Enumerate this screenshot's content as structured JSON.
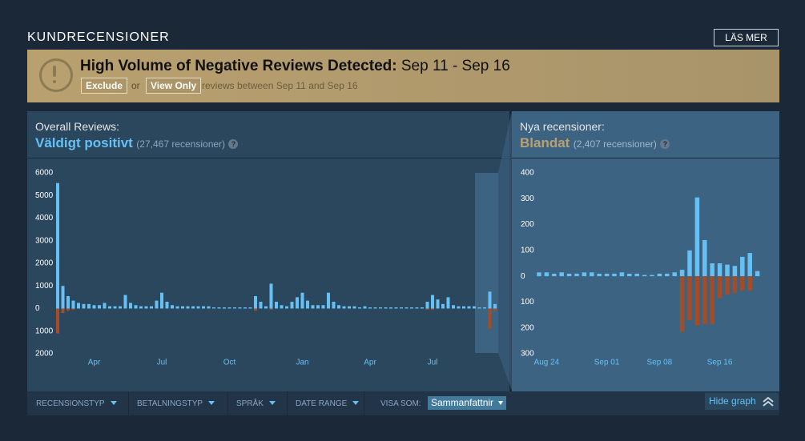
{
  "header": {
    "title": "KUNDRECENSIONER",
    "button": "LÄS MER"
  },
  "alert": {
    "title": "High Volume of Negative Reviews Detected:",
    "dates": "Sep 11 - Sep 16",
    "exclude": "Exclude",
    "or": "or",
    "view_only": "View Only",
    "text": "reviews between Sep 11 and Sep 16"
  },
  "overall": {
    "label": "Overall Reviews:",
    "rating": "Väldigt positivt",
    "count": "(27,467 recensioner)",
    "help": "?"
  },
  "recent": {
    "label": "Nya recensioner:",
    "rating": "Blandat",
    "count": "(2,407 recensioner)",
    "help": "?"
  },
  "chart_data": [
    {
      "type": "bar",
      "categories": [
        null,
        null,
        null,
        null,
        null,
        null,
        null,
        "Apr",
        null,
        null,
        null,
        null,
        null,
        null,
        null,
        null,
        null,
        null,
        null,
        null,
        "Jul",
        null,
        null,
        null,
        null,
        null,
        null,
        null,
        null,
        null,
        null,
        null,
        null,
        "Oct",
        null,
        null,
        null,
        null,
        null,
        null,
        null,
        null,
        null,
        null,
        null,
        null,
        null,
        "Jan",
        null,
        null,
        null,
        null,
        null,
        null,
        null,
        null,
        null,
        null,
        null,
        null,
        "Apr",
        null,
        null,
        null,
        null,
        null,
        null,
        null,
        null,
        null,
        null,
        null,
        "Jul",
        null,
        null,
        null,
        null,
        null,
        null,
        null,
        null,
        null,
        null,
        null,
        null
      ],
      "series": [
        {
          "color": "#66c0f4",
          "values": [
            5550,
            1000,
            550,
            350,
            250,
            200,
            200,
            150,
            150,
            250,
            100,
            100,
            100,
            600,
            250,
            150,
            100,
            100,
            100,
            350,
            700,
            300,
            150,
            100,
            100,
            100,
            100,
            100,
            100,
            100,
            50,
            50,
            50,
            50,
            50,
            50,
            50,
            50,
            550,
            300,
            100,
            1100,
            300,
            150,
            100,
            300,
            500,
            700,
            350,
            150,
            150,
            150,
            700,
            300,
            150,
            100,
            100,
            100,
            50,
            100,
            50,
            50,
            50,
            50,
            50,
            50,
            50,
            50,
            50,
            50,
            50,
            300,
            600,
            400,
            200,
            500,
            150,
            100,
            100,
            100,
            100,
            50,
            50,
            750,
            200
          ]
        },
        {
          "color": "#a34c25",
          "values": [
            -1100,
            -200,
            -100,
            -50,
            0,
            0,
            0,
            0,
            0,
            0,
            0,
            0,
            0,
            0,
            0,
            0,
            0,
            0,
            0,
            0,
            0,
            0,
            0,
            0,
            0,
            0,
            0,
            0,
            0,
            0,
            0,
            0,
            0,
            0,
            0,
            0,
            0,
            0,
            -100,
            0,
            0,
            -50,
            0,
            0,
            0,
            0,
            0,
            0,
            0,
            0,
            0,
            0,
            0,
            0,
            0,
            0,
            0,
            0,
            0,
            0,
            0,
            0,
            0,
            0,
            0,
            0,
            0,
            0,
            0,
            0,
            0,
            -50,
            -50,
            0,
            0,
            0,
            0,
            0,
            0,
            0,
            0,
            0,
            0,
            -900,
            -100
          ]
        }
      ],
      "ylim": [
        -2000,
        6000
      ],
      "yticks": [
        6000,
        5000,
        4000,
        3000,
        2000,
        1000,
        0,
        {
          "value": -1000,
          "label": "1000"
        },
        {
          "value": -2000,
          "label": "2000"
        }
      ]
    },
    {
      "type": "bar",
      "categories": [
        null,
        "Aug 24",
        null,
        null,
        null,
        null,
        null,
        null,
        null,
        "Sep 01",
        null,
        null,
        null,
        null,
        null,
        null,
        "Sep 08",
        null,
        null,
        null,
        null,
        null,
        null,
        null,
        "Sep 16",
        null,
        null,
        null,
        null,
        null
      ],
      "series": [
        {
          "color": "#66c0f4",
          "values": [
            15,
            15,
            10,
            15,
            10,
            10,
            15,
            15,
            10,
            10,
            10,
            15,
            10,
            10,
            5,
            5,
            10,
            10,
            15,
            25,
            100,
            305,
            140,
            50,
            50,
            45,
            40,
            75,
            90,
            20
          ]
        },
        {
          "color": "#a34c25",
          "values": [
            0,
            0,
            0,
            0,
            0,
            0,
            0,
            0,
            0,
            0,
            0,
            0,
            0,
            0,
            0,
            0,
            0,
            0,
            0,
            -215,
            -170,
            -190,
            -185,
            -185,
            -85,
            -70,
            -65,
            -55,
            -55,
            0
          ]
        }
      ],
      "ylim": [
        -300,
        400
      ],
      "yticks": [
        400,
        300,
        200,
        100,
        0,
        {
          "value": -100,
          "label": "100"
        },
        {
          "value": -200,
          "label": "200"
        },
        {
          "value": -300,
          "label": "300"
        }
      ]
    }
  ],
  "filters": {
    "items": [
      "RECENSIONSTYP",
      "BETALNINGSTYP",
      "SPRÅK",
      "DATE RANGE"
    ],
    "view_as": "VISA SOM:",
    "select": "Sammanfattnir",
    "hide_graph": "Hide graph"
  }
}
